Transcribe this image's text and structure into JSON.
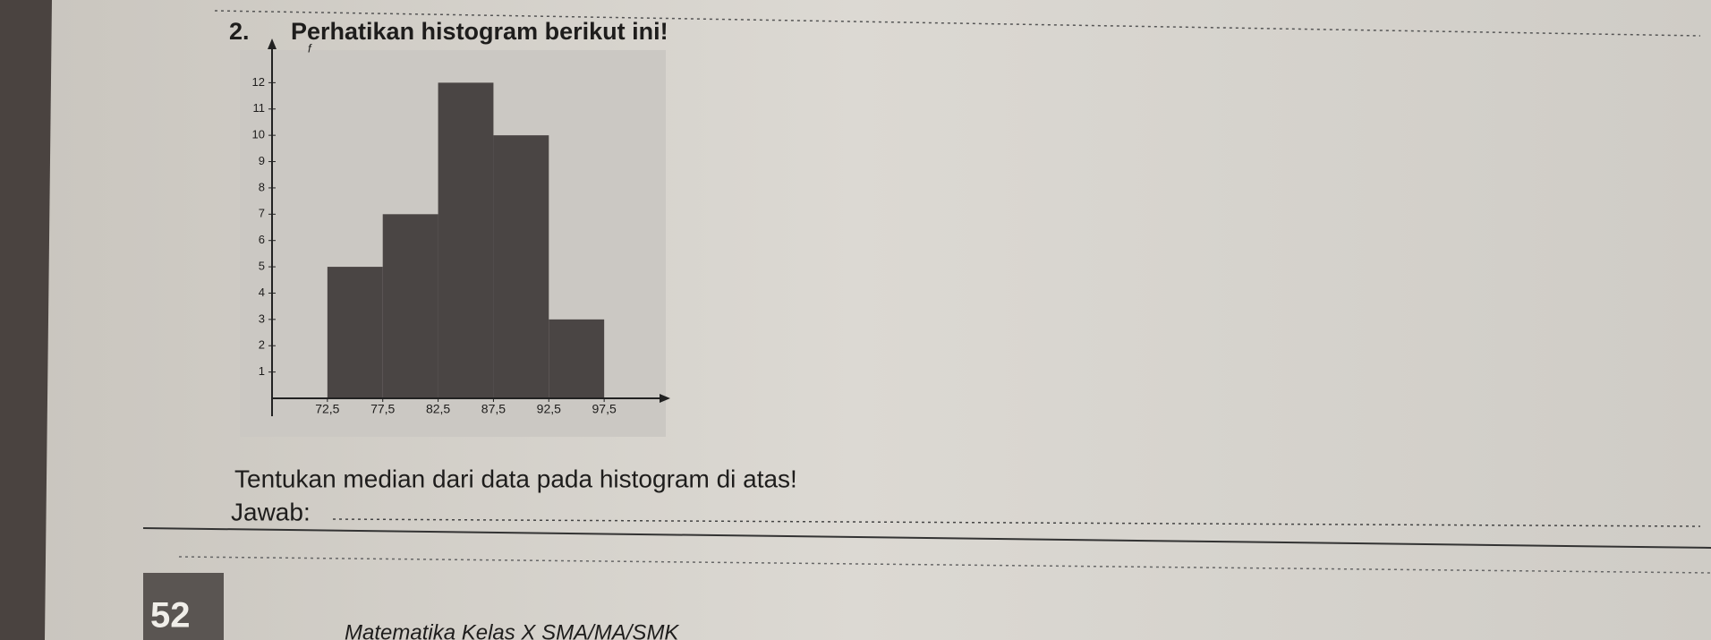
{
  "question_number": "2.",
  "instruction": "Perhatikan histogram berikut ini!",
  "chart_data": {
    "type": "histogram",
    "y_label": "f",
    "bins": [
      72.5,
      77.5,
      82.5,
      87.5,
      92.5,
      97.5
    ],
    "values": [
      5,
      7,
      12,
      10,
      3
    ],
    "color": "#4a4544",
    "xlim": [
      67.5,
      102.5
    ],
    "xticks": [
      {
        "value": 72.5,
        "label": "72,5"
      },
      {
        "value": 77.5,
        "label": "77,5"
      },
      {
        "value": 82.5,
        "label": "82,5"
      },
      {
        "value": 87.5,
        "label": "87,5"
      },
      {
        "value": 92.5,
        "label": "92,5"
      },
      {
        "value": 97.5,
        "label": "97,5"
      }
    ],
    "ylim": [
      0,
      13
    ],
    "yticks": [
      1,
      2,
      3,
      4,
      5,
      6,
      7,
      8,
      9,
      10,
      11,
      12
    ]
  },
  "question": "Tentukan median dari data pada histogram di atas!",
  "answer_label": "Jawab:",
  "footer": {
    "page_number": "52",
    "book_title": "Matematika Kelas X SMA/MA/SMK"
  }
}
